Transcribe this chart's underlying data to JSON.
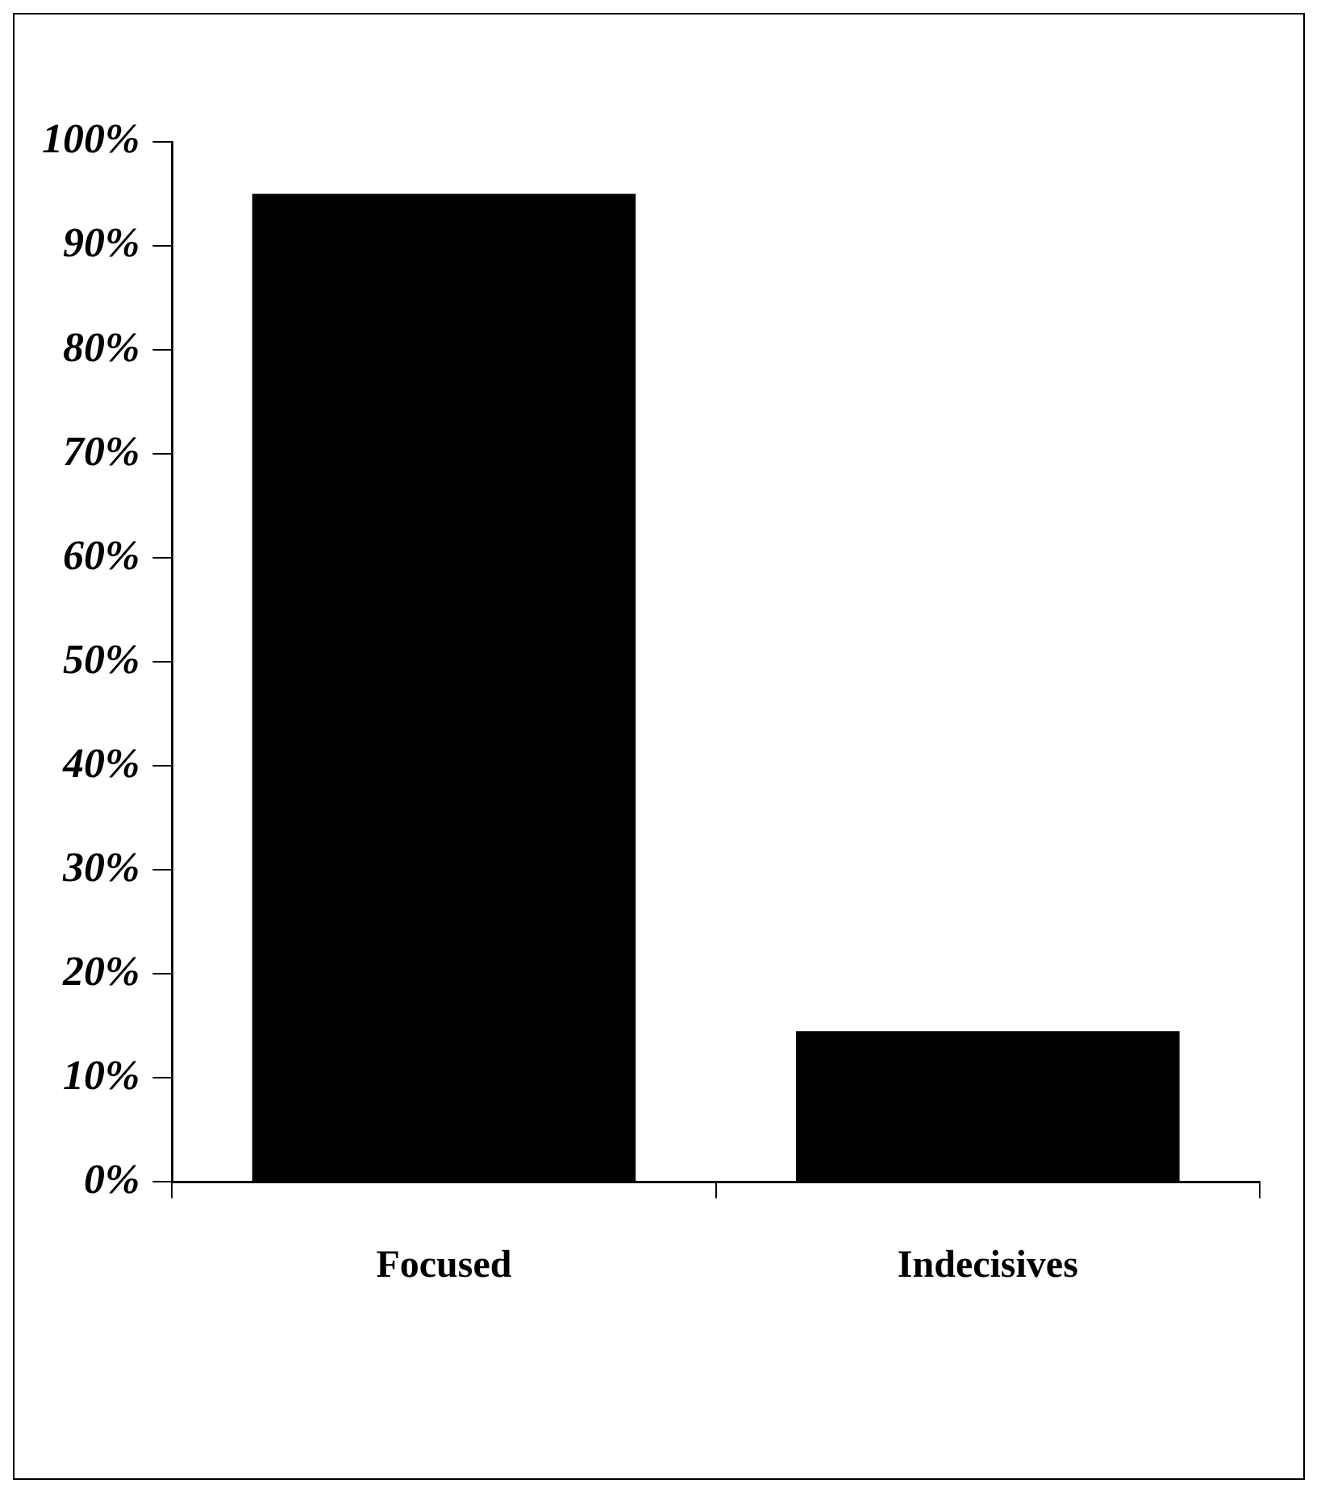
{
  "chart_data": {
    "type": "bar",
    "categories": [
      "Focused",
      "Indecisives"
    ],
    "values": [
      95,
      14.5
    ],
    "color": "#000000",
    "ylim": [
      0,
      100
    ],
    "yticks": [
      {
        "value": 0,
        "label": "0%"
      },
      {
        "value": 10,
        "label": "10%"
      },
      {
        "value": 20,
        "label": "20%"
      },
      {
        "value": 30,
        "label": "30%"
      },
      {
        "value": 40,
        "label": "40%"
      },
      {
        "value": 50,
        "label": "50%"
      },
      {
        "value": 60,
        "label": "60%"
      },
      {
        "value": 70,
        "label": "70%"
      },
      {
        "value": 80,
        "label": "80%"
      },
      {
        "value": 90,
        "label": "90%"
      },
      {
        "value": 100,
        "label": "100%"
      }
    ],
    "grid": false,
    "legend": false
  }
}
